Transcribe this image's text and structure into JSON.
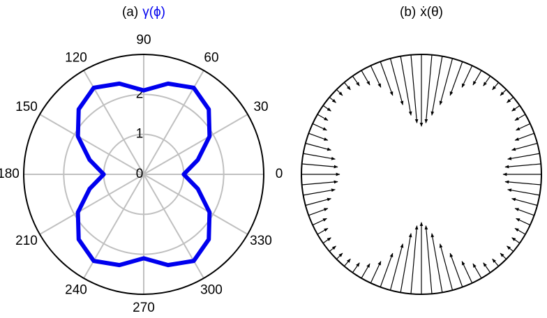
{
  "chart_data": [
    {
      "type": "polar",
      "title_prefix": "(a)",
      "title": "γ(ϕ)",
      "title_color": "#0000ee",
      "theta": [
        0,
        15,
        30,
        45,
        60,
        75,
        90,
        105,
        120,
        135,
        150,
        165,
        180,
        195,
        210,
        225,
        240,
        255,
        270,
        285,
        300,
        315,
        330,
        345
      ],
      "values": [
        1.0,
        1.4,
        1.9,
        2.3,
        2.5,
        2.35,
        2.1,
        2.35,
        2.5,
        2.3,
        1.9,
        1.4,
        1.0,
        1.4,
        1.9,
        2.3,
        2.5,
        2.35,
        2.1,
        2.35,
        2.5,
        2.3,
        1.9,
        1.4
      ],
      "color": "#0000ee",
      "rlim": [
        0,
        3
      ],
      "rticks": [
        0,
        1,
        2
      ],
      "thetaticks": [
        0,
        30,
        60,
        90,
        120,
        150,
        180,
        210,
        240,
        270,
        300,
        330
      ],
      "grid": true
    },
    {
      "type": "quiver",
      "title_prefix": "(b)",
      "title": "ẋ(θ)",
      "theta": [
        0,
        5,
        10,
        15,
        20,
        25,
        30,
        35,
        40,
        45,
        50,
        55,
        60,
        65,
        70,
        75,
        80,
        85,
        90,
        95,
        100,
        105,
        110,
        115,
        120,
        125,
        130,
        135,
        140,
        145,
        150,
        155,
        160,
        165,
        170,
        175,
        180,
        185,
        190,
        195,
        200,
        205,
        210,
        215,
        220,
        225,
        230,
        235,
        240,
        245,
        250,
        255,
        260,
        265,
        270,
        275,
        280,
        285,
        290,
        295,
        300,
        305,
        310,
        315,
        320,
        325,
        330,
        335,
        340,
        345,
        350,
        355
      ],
      "values": [
        0.32,
        0.3,
        0.27,
        0.22,
        0.17,
        0.13,
        0.1,
        0.08,
        0.07,
        0.07,
        0.08,
        0.1,
        0.14,
        0.2,
        0.3,
        0.4,
        0.5,
        0.57,
        0.6,
        0.57,
        0.5,
        0.4,
        0.3,
        0.2,
        0.14,
        0.1,
        0.08,
        0.07,
        0.07,
        0.08,
        0.1,
        0.13,
        0.17,
        0.22,
        0.27,
        0.3,
        0.32,
        0.3,
        0.27,
        0.22,
        0.17,
        0.13,
        0.1,
        0.08,
        0.07,
        0.07,
        0.08,
        0.1,
        0.14,
        0.2,
        0.3,
        0.4,
        0.5,
        0.57,
        0.6,
        0.57,
        0.5,
        0.4,
        0.3,
        0.2,
        0.14,
        0.1,
        0.08,
        0.07,
        0.07,
        0.08,
        0.1,
        0.13,
        0.17,
        0.22,
        0.27,
        0.3
      ],
      "color": "#000000",
      "rlim": [
        0,
        1
      ]
    }
  ]
}
